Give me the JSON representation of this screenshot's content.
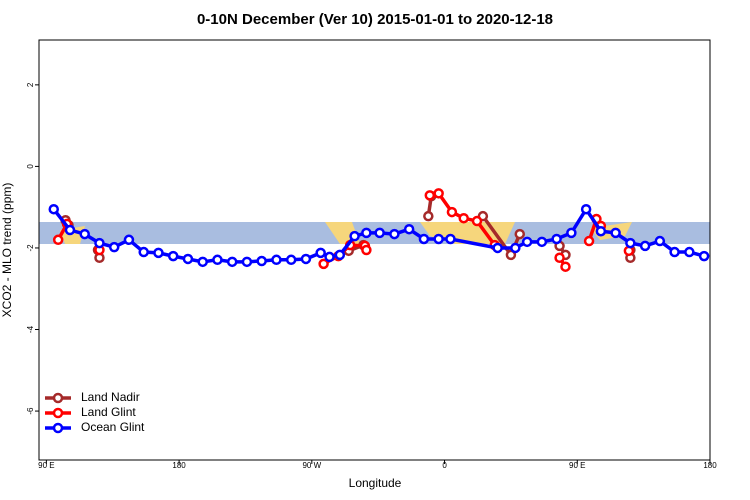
{
  "chart_data": {
    "type": "line",
    "title": "0-10N December (Ver 10)   2015-01-01 to 2020-12-18",
    "x_label": "Longitude",
    "y_label": "XCO2 - MLO trend (ppm)",
    "xlim": [
      85,
      540
    ],
    "ylim": [
      -7.2,
      3.1
    ],
    "xticks": [
      {
        "value": 90,
        "label": "90 E"
      },
      180,
      {
        "value": 270,
        "label": "90 W"
      },
      {
        "value": 360,
        "label": "0"
      },
      {
        "value": 450,
        "label": "90 E"
      },
      {
        "value": 540,
        "label": "180"
      }
    ],
    "yticks": [
      -6,
      -4,
      -2,
      0,
      2
    ],
    "legend": "bottom-left",
    "series": [
      {
        "name": "Land Nadir",
        "color": "#a52a2a",
        "x": [
          103,
          105,
          null,
          125,
          126,
          null,
          295,
          305,
          null,
          349,
          351,
          null,
          386,
          405,
          411,
          null,
          438,
          442,
          null,
          486,
          486
        ],
        "values": [
          -1.32,
          -1.44,
          null,
          -2.05,
          -2.24,
          null,
          -2.07,
          -1.93,
          null,
          -1.22,
          -0.73,
          null,
          -1.22,
          -2.17,
          -1.66,
          null,
          -1.95,
          -2.17,
          null,
          -2.05,
          -2.24
        ]
      },
      {
        "name": "Land Glint",
        "color": "#ff0000",
        "x": [
          98,
          104,
          null,
          126,
          null,
          278,
          288,
          296,
          306,
          307,
          null,
          350,
          356,
          365,
          373,
          382,
          394,
          null,
          438,
          442,
          null,
          458,
          463,
          466,
          null,
          485
        ],
        "values": [
          -1.8,
          -1.41,
          null,
          -2.05,
          null,
          -2.39,
          -2.2,
          -1.93,
          -1.95,
          -2.05,
          null,
          -0.71,
          -0.66,
          -1.12,
          -1.27,
          -1.34,
          -1.93,
          null,
          -2.24,
          -2.46,
          null,
          -1.83,
          -1.29,
          -1.46,
          null,
          -2.07
        ]
      },
      {
        "name": "Ocean Glint",
        "color": "#0000ff",
        "x": [
          95,
          106,
          116,
          126,
          136,
          146,
          156,
          166,
          176,
          186,
          196,
          206,
          216,
          226,
          236,
          246,
          256,
          266,
          276,
          282,
          289,
          299,
          307,
          316,
          326,
          336,
          346,
          356,
          364,
          396,
          408,
          416,
          426,
          436,
          446,
          456,
          466,
          476,
          486,
          496,
          506,
          516,
          526,
          536
        ],
        "values": [
          -1.05,
          -1.56,
          -1.66,
          -1.88,
          -1.98,
          -1.8,
          -2.1,
          -2.12,
          -2.2,
          -2.27,
          -2.34,
          -2.29,
          -2.34,
          -2.34,
          -2.32,
          -2.29,
          -2.29,
          -2.27,
          -2.12,
          -2.22,
          -2.17,
          -1.71,
          -1.63,
          -1.63,
          -1.66,
          -1.54,
          -1.78,
          -1.78,
          -1.78,
          -2.0,
          -2.0,
          -1.85,
          -1.85,
          -1.78,
          -1.63,
          -1.05,
          -1.59,
          -1.63,
          -1.88,
          -1.95,
          -1.83,
          -2.1,
          -2.1,
          -2.2
        ]
      }
    ]
  }
}
